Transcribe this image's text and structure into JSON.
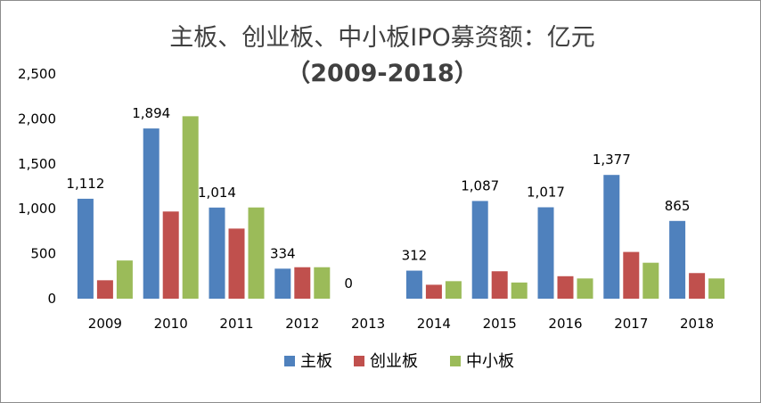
{
  "chart_data": {
    "type": "bar",
    "title": "主板、创业板、中小板IPO募资额：亿元",
    "subtitle": "（2009-2018）",
    "categories": [
      "2009",
      "2010",
      "2011",
      "2012",
      "2013",
      "2014",
      "2015",
      "2016",
      "2017",
      "2018"
    ],
    "series": [
      {
        "name": "主板",
        "color": "#4f81bd",
        "values": [
          1112,
          1894,
          1014,
          334,
          0,
          312,
          1087,
          1017,
          1377,
          865
        ]
      },
      {
        "name": "创业板",
        "color": "#c0504d",
        "values": [
          205,
          970,
          780,
          350,
          0,
          155,
          305,
          250,
          520,
          285
        ]
      },
      {
        "name": "中小板",
        "color": "#9bbb59",
        "values": [
          425,
          2030,
          1015,
          350,
          0,
          195,
          180,
          225,
          400,
          225
        ]
      }
    ],
    "data_labels": {
      "series": "主板",
      "text": [
        "1,112",
        "1,894",
        "1,014",
        "334",
        "0",
        "312",
        "1,087",
        "1,017",
        "1,377",
        "865"
      ]
    },
    "y_ticks": [
      0,
      500,
      1000,
      1500,
      2000,
      2500
    ],
    "y_tick_labels": [
      "0",
      "500",
      "1,000",
      "1,500",
      "2,000",
      "2,500"
    ],
    "ylim": [
      0,
      2500
    ],
    "grid": false,
    "legend_position": "bottom",
    "xlabel": "",
    "ylabel": ""
  }
}
